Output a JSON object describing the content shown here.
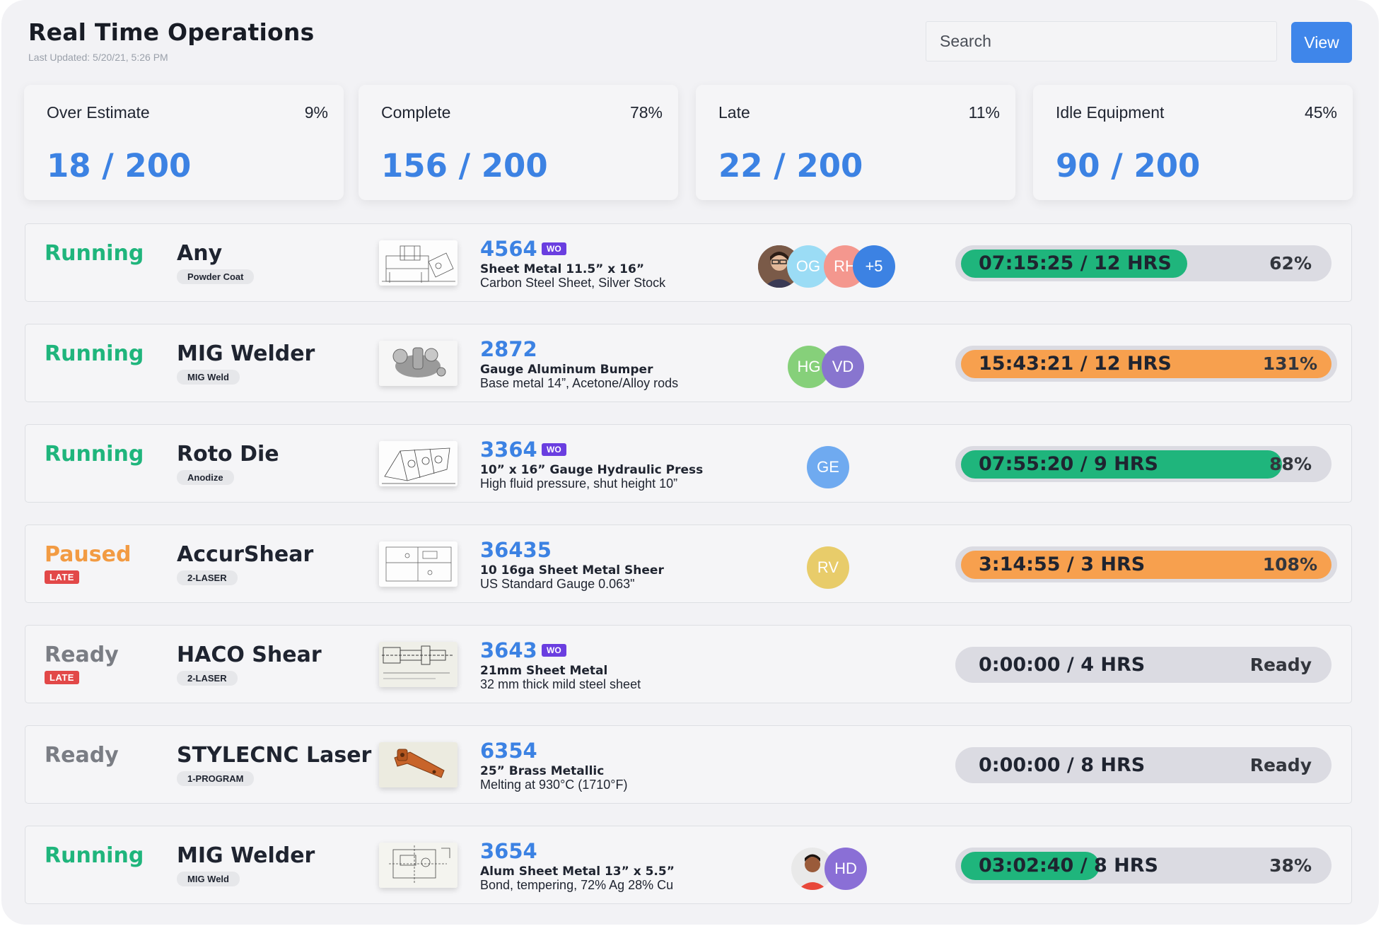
{
  "header": {
    "title": "Real Time Operations",
    "last_updated": "Last Updated: 5/20/21, 5:26 PM",
    "search_placeholder": "Search",
    "view_label": "View"
  },
  "stats": [
    {
      "label": "Over Estimate",
      "percent": "9%",
      "value": "18 / 200"
    },
    {
      "label": "Complete",
      "percent": "78%",
      "value": "156 / 200"
    },
    {
      "label": "Late",
      "percent": "11%",
      "value": "22 / 200"
    },
    {
      "label": "Idle Equipment",
      "percent": "45%",
      "value": "90 / 200"
    }
  ],
  "colors": {
    "accent": "#3c82e3",
    "running": "#1fb57c",
    "paused": "#f29b43",
    "ready": "#7a7d84",
    "late_badge": "#e24848",
    "wo_badge": "#6a3ee0",
    "progress_green": "#1fb57c",
    "progress_orange": "#f7a04e"
  },
  "operations": [
    {
      "status": "Running",
      "late": "",
      "machine": "Any",
      "tag": "Powder Coat",
      "thumbnail": "technical-drawing-image",
      "wo_number": "4564",
      "wo_badge": "WO",
      "desc1": "Sheet Metal 11.5” x 16”",
      "desc2": "Carbon Steel Sheet, Silver Stock",
      "avatars": [
        "OG",
        "RH",
        "+5"
      ],
      "time": "07:15:25 / 12 HRS",
      "progress_label": "62%",
      "progress": 0.62
    },
    {
      "status": "Running",
      "late": "",
      "machine": "MIG Welder",
      "tag": "MIG Weld",
      "thumbnail": "engine-part-render-image",
      "wo_number": "2872",
      "wo_badge": "",
      "desc1": "Gauge Aluminum Bumper",
      "desc2": "Base metal 14”, Acetone/Alloy rods",
      "avatars": [
        "HG",
        "VD"
      ],
      "time": "15:43:21 / 12 HRS",
      "progress_label": "131%",
      "progress": 1.31
    },
    {
      "status": "Running",
      "late": "",
      "machine": "Roto Die",
      "tag": "Anodize",
      "thumbnail": "press-drawing-image",
      "wo_number": "3364",
      "wo_badge": "WO",
      "desc1": "10” x 16” Gauge Hydraulic Press",
      "desc2": "High fluid pressure, shut height 10”",
      "avatars": [
        "GE"
      ],
      "time": "07:55:20 / 9 HRS",
      "progress_label": "88%",
      "progress": 0.88
    },
    {
      "status": "Paused",
      "late": "LATE",
      "machine": "AccurShear",
      "tag": "2-LASER",
      "thumbnail": "sheet-drawing-image",
      "wo_number": "36435",
      "wo_badge": "",
      "desc1": "10 16ga Sheet Metal Sheer",
      "desc2": "US Standard Gauge 0.063\"",
      "avatars": [
        "RV"
      ],
      "time": "3:14:55 / 3 HRS",
      "progress_label": "108%",
      "progress": 1.08
    },
    {
      "status": "Ready",
      "late": "LATE",
      "machine": "HACO Shear",
      "tag": "2-LASER",
      "thumbnail": "shaft-drawing-image",
      "wo_number": "3643",
      "wo_badge": "WO",
      "desc1": "21mm Sheet Metal",
      "desc2": "32 mm thick mild steel sheet",
      "avatars": [],
      "time": "0:00:00 / 4 HRS",
      "progress_label": "Ready",
      "progress": 0
    },
    {
      "status": "Ready",
      "late": "",
      "machine": "STYLECNC Laser",
      "tag": "1-PROGRAM",
      "thumbnail": "brass-part-image",
      "wo_number": "6354",
      "wo_badge": "",
      "desc1": "25” Brass Metallic",
      "desc2": "Melting at 930°C (1710°F)",
      "avatars": [],
      "time": "0:00:00 / 8 HRS",
      "progress_label": "Ready",
      "progress": 0
    },
    {
      "status": "Running",
      "late": "",
      "machine": "MIG Welder",
      "tag": "MIG Weld",
      "thumbnail": "bracket-drawing-image",
      "wo_number": "3654",
      "wo_badge": "",
      "desc1": "Alum Sheet Metal 13” x 5.5”",
      "desc2": "Bond, tempering, 72% Ag 28% Cu",
      "avatars": [
        "HD"
      ],
      "time": "03:02:40 / 8 HRS",
      "progress_label": "38%",
      "progress": 0.38
    }
  ]
}
